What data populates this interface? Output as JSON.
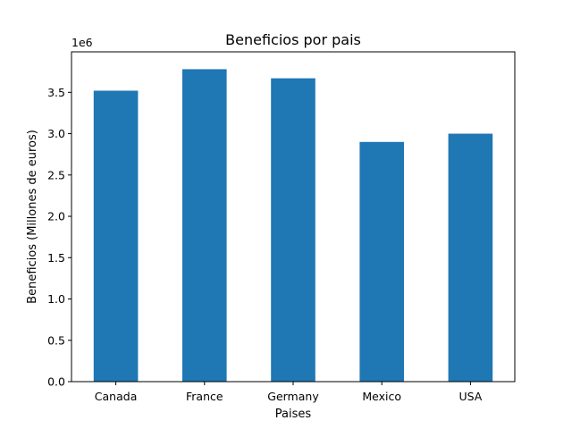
{
  "chart_data": {
    "type": "bar",
    "title": "Beneficios por pais",
    "xlabel": "Paises",
    "ylabel": "Beneficios (Millones de euros)",
    "y_offset_label": "1e6",
    "categories": [
      "Canada",
      "France",
      "Germany",
      "Mexico",
      "USA"
    ],
    "values": [
      3520000,
      3780000,
      3670000,
      2900000,
      3000000
    ],
    "ylim": [
      0,
      3990000
    ],
    "yticks": [
      0,
      500000,
      1000000,
      1500000,
      2000000,
      2500000,
      3000000,
      3500000
    ],
    "ytick_labels": [
      "0.0",
      "0.5",
      "1.0",
      "1.5",
      "2.0",
      "2.5",
      "3.0",
      "3.5"
    ],
    "bar_color": "#1f77b4",
    "grid": false,
    "legend": "none"
  }
}
